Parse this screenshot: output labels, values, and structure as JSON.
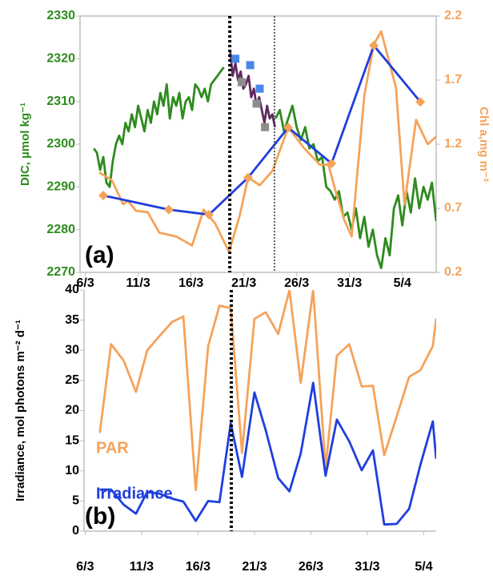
{
  "chart_data": [
    {
      "type": "line",
      "panel_label": "(a)",
      "ylabel": "DIC, µmol kg⁻¹",
      "ylabel_color": "#2e8b1e",
      "y2label": "Chl a,mg m⁻³",
      "y2label_color": "#f5a35a",
      "xlim": [
        -0.5,
        33.2
      ],
      "xticks": [
        {
          "value": 0,
          "label": "6/3"
        },
        {
          "value": 5,
          "label": "11/3"
        },
        {
          "value": 10,
          "label": "16/3"
        },
        {
          "value": 15,
          "label": "21/3"
        },
        {
          "value": 20,
          "label": "26/3"
        },
        {
          "value": 25,
          "label": "31/3"
        },
        {
          "value": 30,
          "label": "5/4"
        }
      ],
      "ylim": [
        2270,
        2330
      ],
      "yticks": [
        2270,
        2280,
        2290,
        2300,
        2310,
        2320,
        2330
      ],
      "y2lim": [
        0.2,
        2.2
      ],
      "y2ticks": [
        0.2,
        0.7,
        1.2,
        1.7,
        2.2
      ],
      "vlines": [
        {
          "x": 13.67,
          "style": "bold"
        },
        {
          "x": 17.9,
          "style": "thin"
        }
      ],
      "series": [
        {
          "color": "#2e8b1e",
          "marker": "none",
          "line": true,
          "x": [
            0.8,
            1.1,
            1.4,
            1.7,
            2.0,
            2.3,
            2.6,
            2.9,
            3.2,
            3.5,
            3.8,
            4.1,
            4.4,
            4.7,
            5.0,
            5.3,
            5.6,
            5.9,
            6.2,
            6.5,
            6.8,
            7.1,
            7.4,
            7.7,
            8.0,
            8.3,
            8.6,
            8.9,
            9.2,
            9.5,
            9.8,
            10.1,
            10.4,
            10.7,
            11.0,
            11.3,
            11.6,
            11.9,
            12.2,
            12.5,
            12.8,
            13.1
          ],
          "values": [
            2299,
            2298,
            2294,
            2297,
            2291,
            2290,
            2296,
            2300,
            2302,
            2300,
            2305,
            2303,
            2307,
            2304,
            2309,
            2306,
            2303,
            2308,
            2305,
            2310,
            2307,
            2312,
            2309,
            2314,
            2306,
            2311,
            2309,
            2312,
            2306,
            2310,
            2311,
            2308,
            2314,
            2313,
            2311,
            2313,
            2310,
            2314,
            2315,
            2316,
            2317,
            2318
          ]
        },
        {
          "color": "#2e8b1e",
          "marker": "none",
          "line": true,
          "x": [
            18.0,
            18.4,
            18.8,
            19.2,
            19.6,
            20.0,
            20.4,
            20.8,
            21.2,
            21.6,
            22.0,
            22.4,
            22.8,
            23.2,
            23.6,
            24.0,
            24.4,
            24.8,
            25.2,
            25.6,
            26.0,
            26.4,
            26.8,
            27.2,
            27.6,
            28.0,
            28.4,
            28.8,
            29.2,
            29.6,
            30.0,
            30.4,
            30.8,
            31.2,
            31.6,
            32.0,
            32.4,
            32.8,
            33.2
          ],
          "values": [
            2306,
            2308,
            2303,
            2306,
            2309,
            2304,
            2301,
            2304,
            2299,
            2300,
            2296,
            2297,
            2290,
            2289,
            2287,
            2289,
            2283,
            2284,
            2280,
            2285,
            2278,
            2283,
            2276,
            2280,
            2274,
            2271,
            2278,
            2274,
            2285,
            2288,
            2281,
            2289,
            2284,
            2292,
            2285,
            2290,
            2287,
            2291,
            2282
          ]
        },
        {
          "color": "#5e2a5e",
          "marker": "none",
          "line": true,
          "x": [
            13.7,
            13.95,
            14.2,
            14.45,
            14.7,
            14.95,
            15.2,
            15.45,
            15.7,
            15.95,
            16.2,
            16.45,
            16.7,
            16.95,
            17.2,
            17.45,
            17.7,
            17.95
          ],
          "values": [
            2322,
            2316,
            2319,
            2315,
            2317,
            2313,
            2314,
            2316,
            2311,
            2313,
            2309,
            2311,
            2308,
            2305,
            2309,
            2306,
            2307,
            2304
          ]
        },
        {
          "color": "#4a86e8",
          "marker": "square",
          "line": false,
          "x": [
            14.2,
            15.6,
            16.5
          ],
          "values": [
            2320,
            2318.5,
            2313
          ]
        },
        {
          "color": "#8c8c8c",
          "marker": "square",
          "line": false,
          "x": [
            14.8,
            16.2,
            17.0
          ],
          "values": [
            2314.5,
            2309.5,
            2304
          ]
        },
        {
          "color": "#f5a35a",
          "marker": "none",
          "line": true,
          "axis": "y2",
          "x": [
            1.3,
            2.5,
            3.6,
            4.0,
            4.8,
            5.9,
            7.0,
            8.6,
            10.1,
            11.2,
            12.3,
            13.6,
            14.6,
            15.4,
            16.5,
            17.7,
            19.2,
            20.7,
            22.2,
            23.0,
            23.7,
            24.5,
            25.2,
            26.4,
            27.3,
            28.0,
            28.6,
            29.4,
            30.2,
            31.3,
            32.4,
            33.2
          ],
          "values": [
            0.98,
            0.92,
            0.73,
            0.76,
            0.68,
            0.67,
            0.51,
            0.48,
            0.41,
            0.69,
            0.58,
            0.36,
            0.64,
            0.94,
            0.88,
            0.99,
            1.33,
            1.17,
            1.04,
            1.04,
            0.83,
            0.61,
            0.48,
            1.58,
            1.98,
            2.08,
            1.89,
            1.64,
            0.73,
            1.39,
            1.2,
            1.26
          ]
        },
        {
          "color": "#1f3fdd",
          "marker": "diamond",
          "marker_color": "#f5a35a",
          "line": true,
          "axis": "y2",
          "x": [
            1.7,
            7.9,
            11.7,
            15.4,
            19.2,
            23.3,
            27.3,
            31.7
          ],
          "values": [
            0.8,
            0.69,
            0.65,
            0.94,
            1.33,
            1.05,
            1.97,
            1.53
          ]
        }
      ]
    },
    {
      "type": "line",
      "panel_label": "(b)",
      "ylabel": "Irradiance, mol photons m⁻² d⁻¹",
      "ylabel_color": "#000000",
      "xlim": [
        -0.1,
        31.1
      ],
      "xticks": [
        {
          "value": 0,
          "label": "6/3"
        },
        {
          "value": 5,
          "label": "11/3"
        },
        {
          "value": 10,
          "label": "16/3"
        },
        {
          "value": 15,
          "label": "21/3"
        },
        {
          "value": 20,
          "label": "26/3"
        },
        {
          "value": 25,
          "label": "31/3"
        },
        {
          "value": 30,
          "label": "5/4"
        }
      ],
      "ylim": [
        0,
        40
      ],
      "yticks": [
        0,
        5,
        10,
        15,
        20,
        25,
        30,
        35,
        40
      ],
      "vlines": [
        {
          "x": 12.95,
          "style": "bold"
        }
      ],
      "series": [
        {
          "name": "PAR",
          "color": "#f5a35a",
          "marker": "none",
          "line": true,
          "x": [
            1.3,
            2.3,
            3.4,
            4.5,
            5.5,
            6.6,
            7.7,
            8.7,
            9.8,
            10.9,
            11.9,
            12.9,
            13.9,
            15.0,
            16.0,
            17.1,
            18.1,
            19.1,
            20.2,
            21.3,
            22.3,
            23.4,
            24.5,
            25.5,
            26.5,
            27.6,
            28.7,
            29.7,
            30.8,
            31.1
          ],
          "values": [
            16.3,
            31.0,
            28.3,
            23.1,
            30.0,
            32.4,
            34.7,
            35.6,
            6.8,
            30.7,
            37.4,
            37.0,
            13.0,
            35.2,
            36.3,
            32.7,
            40.0,
            24.6,
            40.0,
            10.4,
            29.1,
            31.0,
            24.0,
            24.1,
            12.6,
            19.0,
            25.6,
            26.7,
            30.7,
            35.3
          ]
        },
        {
          "name": "Irradiance",
          "color": "#1f3fdd",
          "marker": "none",
          "line": true,
          "x": [
            1.3,
            2.3,
            3.4,
            4.5,
            5.5,
            6.6,
            7.7,
            8.7,
            9.8,
            10.9,
            11.9,
            12.9,
            13.9,
            15.0,
            16.0,
            17.1,
            18.1,
            19.1,
            20.2,
            21.3,
            22.3,
            23.4,
            24.5,
            25.5,
            26.5,
            27.6,
            28.7,
            29.7,
            30.8,
            31.1
          ],
          "values": [
            6.9,
            6.9,
            4.4,
            2.9,
            6.5,
            6.2,
            5.4,
            4.9,
            1.7,
            5.0,
            4.8,
            17.9,
            9.0,
            23.0,
            16.7,
            8.8,
            6.6,
            12.9,
            24.6,
            9.2,
            18.5,
            14.9,
            10.1,
            13.4,
            1.1,
            1.2,
            3.7,
            11.0,
            18.2,
            12.0
          ]
        }
      ]
    }
  ]
}
